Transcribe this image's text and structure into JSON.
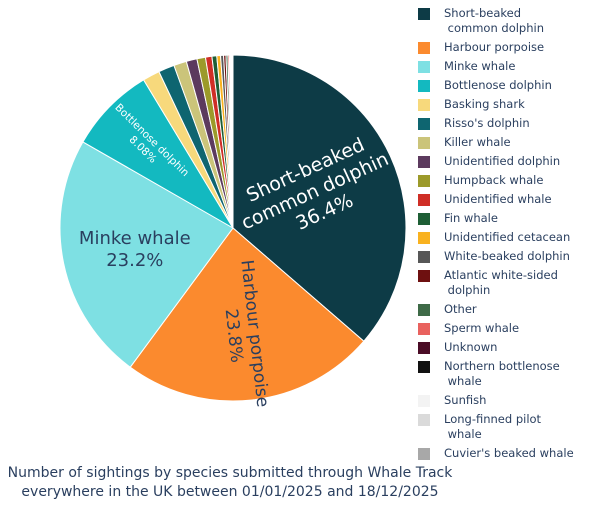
{
  "chart_data": {
    "type": "pie",
    "title": "Number of sightings by species submitted through Whale Track everywhere in the UK between 01/01/2025 and 18/12/2025",
    "title_lines": [
      "Number of sightings by species submitted through Whale Track",
      "everywhere in the UK between 01/01/2025 and 18/12/2025"
    ],
    "legend_placement": "right",
    "slices": [
      {
        "label": "Short-beaked\n common dolphin",
        "value": 36.4,
        "color": "#0d3b46",
        "text": [
          "Short-beaked",
          "common dolphin",
          "36.4%"
        ],
        "text_color": "#ffffff"
      },
      {
        "label": "Harbour porpoise",
        "value": 23.8,
        "color": "#fb8a2e",
        "text": [
          "Harbour porpoise",
          "23.8%"
        ],
        "text_color": "#2a3f5f"
      },
      {
        "label": "Minke whale",
        "value": 23.2,
        "color": "#7ee0e3",
        "text": [
          "Minke whale",
          "23.2%"
        ],
        "text_color": "#2a3f5f"
      },
      {
        "label": "Bottlenose dolphin",
        "value": 8.08,
        "color": "#13b9c0",
        "text": [
          "Bottlenose dolphin",
          "8.08%"
        ],
        "text_color": "#ffffff"
      },
      {
        "label": "Basking shark",
        "value": 1.6,
        "color": "#f7d97c",
        "text": [],
        "text_color": "#2a3f5f"
      },
      {
        "label": "Risso's dolphin",
        "value": 1.5,
        "color": "#0e6570",
        "text": [],
        "text_color": "#ffffff"
      },
      {
        "label": "Killer whale",
        "value": 1.2,
        "color": "#cbc47a",
        "text": [],
        "text_color": "#2a3f5f"
      },
      {
        "label": "Unidentified dolphin",
        "value": 1.0,
        "color": "#5c3a5e",
        "text": [],
        "text_color": "#ffffff"
      },
      {
        "label": "Humpback whale",
        "value": 0.8,
        "color": "#9c9a2a",
        "text": [],
        "text_color": "#ffffff"
      },
      {
        "label": "Unidentified whale",
        "value": 0.6,
        "color": "#cf2e26",
        "text": [],
        "text_color": "#ffffff"
      },
      {
        "label": "Fin whale",
        "value": 0.45,
        "color": "#1e5e35",
        "text": [],
        "text_color": "#ffffff"
      },
      {
        "label": "Unidentified cetacean",
        "value": 0.35,
        "color": "#f9b21f",
        "text": [],
        "text_color": "#2a3f5f"
      },
      {
        "label": "White-beaked dolphin",
        "value": 0.28,
        "color": "#575757",
        "text": [],
        "text_color": "#ffffff"
      },
      {
        "label": "Atlantic white-sided\n dolphin",
        "value": 0.22,
        "color": "#6e1010",
        "text": [],
        "text_color": "#ffffff"
      },
      {
        "label": "Other",
        "value": 0.18,
        "color": "#3e6a47",
        "text": [],
        "text_color": "#ffffff"
      },
      {
        "label": "Sperm whale",
        "value": 0.14,
        "color": "#e9625e",
        "text": [],
        "text_color": "#ffffff"
      },
      {
        "label": "Unknown",
        "value": 0.1,
        "color": "#4a0c26",
        "text": [],
        "text_color": "#ffffff"
      },
      {
        "label": "Northern bottlenose\n whale",
        "value": 0.08,
        "color": "#111111",
        "text": [],
        "text_color": "#ffffff"
      },
      {
        "label": "Sunfish",
        "value": 0.06,
        "color": "#f3f3f3",
        "text": [],
        "text_color": "#2a3f5f"
      },
      {
        "label": "Long-finned pilot\n whale",
        "value": 0.05,
        "color": "#dadada",
        "text": [],
        "text_color": "#2a3f5f"
      },
      {
        "label": "Cuvier's beaked whale",
        "value": 0.04,
        "color": "#a8a8a8",
        "text": [],
        "text_color": "#2a3f5f"
      }
    ]
  }
}
